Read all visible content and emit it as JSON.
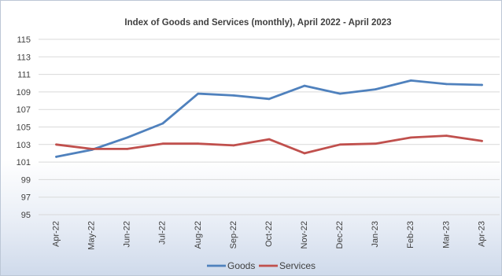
{
  "chart_data": {
    "type": "line",
    "title": "Index of Goods and Services (monthly), April 2022 - April 2023",
    "xlabel": "",
    "ylabel": "",
    "categories": [
      "Apr-22",
      "May-22",
      "Jun-22",
      "Jul-22",
      "Aug-22",
      "Sep-22",
      "Oct-22",
      "Nov-22",
      "Dec-22",
      "Jan-23",
      "Feb-23",
      "Mar-23",
      "Apr-23"
    ],
    "ylim": [
      95,
      115
    ],
    "yticks": [
      95,
      97,
      99,
      101,
      103,
      105,
      107,
      109,
      111,
      113,
      115
    ],
    "grid": true,
    "legend": "bottom",
    "series": [
      {
        "name": "Goods",
        "color": "#4f81bd",
        "values": [
          101.6,
          102.4,
          103.8,
          105.4,
          108.8,
          108.6,
          108.2,
          109.7,
          108.8,
          109.3,
          110.3,
          109.9,
          109.8
        ]
      },
      {
        "name": "Services",
        "color": "#c0504d",
        "values": [
          103.0,
          102.5,
          102.5,
          103.1,
          103.1,
          102.9,
          103.6,
          102.0,
          103.0,
          103.1,
          103.8,
          104.0,
          103.4
        ]
      }
    ]
  }
}
